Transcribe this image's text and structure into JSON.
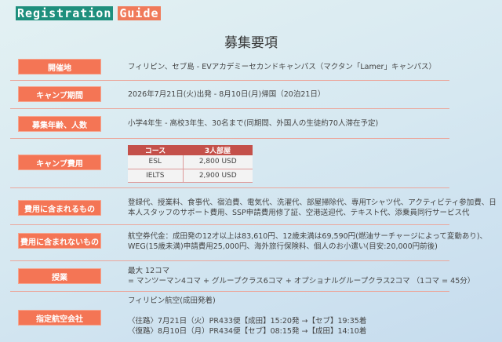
{
  "logo": {
    "part1": "Registration",
    "part2": "Guide"
  },
  "title": "募集要項",
  "rows": [
    {
      "label": "開催地",
      "lines": [
        "フィリピン、セブ島 - EVアカデミーセカンドキャンパス（マクタン「Lamer」キャンパス）"
      ]
    },
    {
      "label": "キャンプ期間",
      "lines": [
        "2026年7月21日(火)出発 - 8月10日(月)帰国（20泊21日）"
      ]
    },
    {
      "label": "募集年齢、人数",
      "lines": [
        "小学4年生 - 高校3年生、30名まで(同期間、外国人の生徒約70人滞在予定)"
      ]
    },
    {
      "label": "キャンプ費用",
      "table": {
        "headers": [
          "コース",
          "3人部屋"
        ],
        "rows": [
          [
            "ESL",
            "2,800 USD"
          ],
          [
            "IELTS",
            "2,900 USD"
          ]
        ]
      }
    },
    {
      "label": "費用に含まれるもの",
      "lines": [
        "登録代、授業料、食事代、宿泊費、電気代、洗濯代、部屋掃除代、専用Tシャツ代、アクティビティ参加費、日",
        "本人スタッフのサポート費用、SSP申請費用修了証、空港送迎代、テキスト代、添乗員同行サービス代"
      ]
    },
    {
      "label": "費用に含まれないもの",
      "lines": [
        "航空券代金：成田発の12才以上は83,610円、12歳未満は69,590円(燃油サーチャージによって変動あり)、",
        "WEG(15歳未満)申請費用25,000円、海外旅行保険料、個人のお小遣い(目安:20,000円前後)"
      ]
    },
    {
      "label": "授業",
      "lines": [
        "最大 12コマ",
        "= マンツーマン4コマ + グループクラス6コマ + オプショナルグループクラス2コマ （1コマ = 45分）"
      ]
    },
    {
      "label": "指定航空会社",
      "lines": [
        "フィリピン航空(成田発着)",
        "",
        "〈往路〉7月21日（火）PR433便【成田】15:20発 →【セブ】19:35着",
        "〈復路〉8月10日（月）PR434便【セブ】08:15発 →【成田】14:10着"
      ]
    }
  ]
}
